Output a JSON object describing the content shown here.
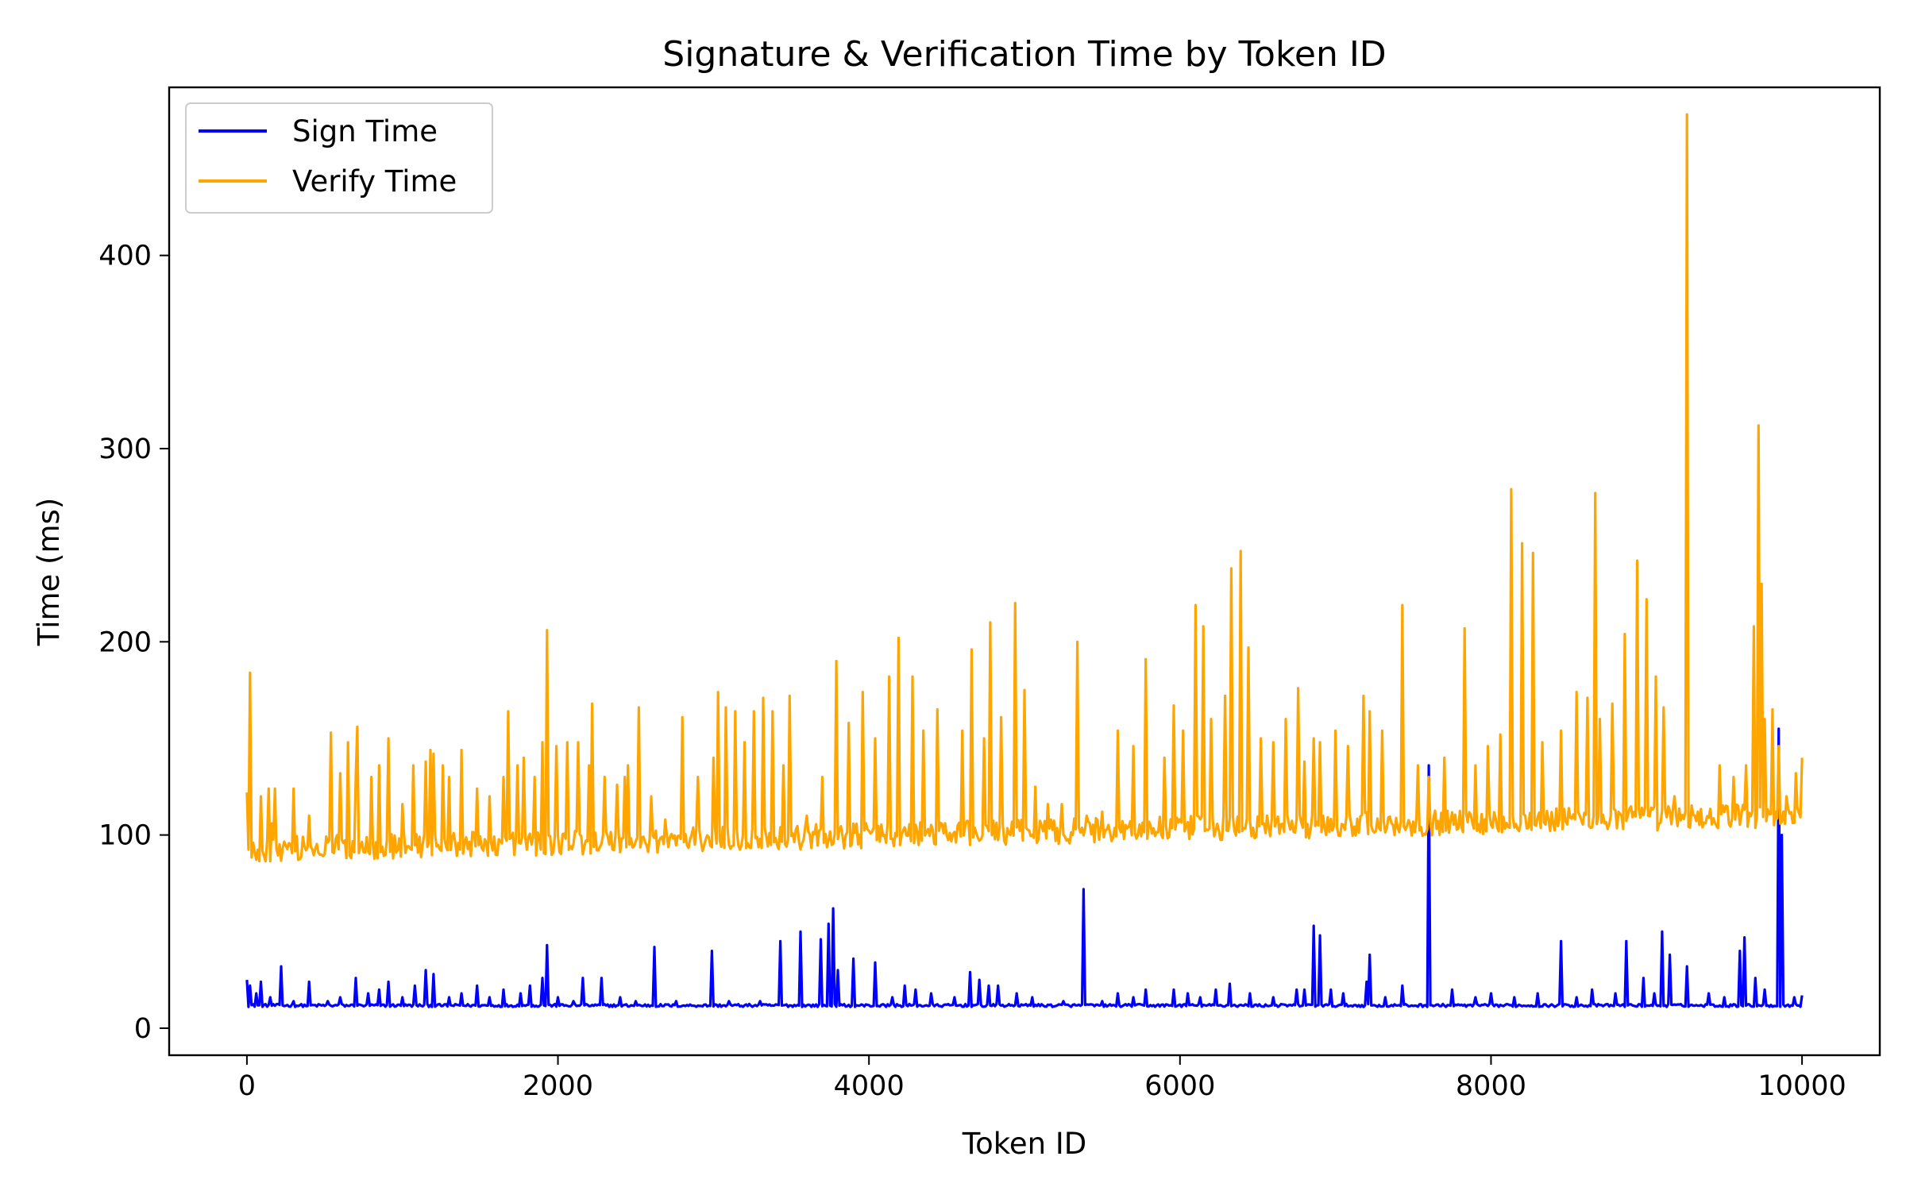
{
  "chart_data": {
    "type": "line",
    "title": "Signature & Verification Time by Token ID",
    "xlabel": "Token ID",
    "ylabel": "Time (ms)",
    "xlim": [
      -500,
      10500
    ],
    "ylim": [
      -14,
      487
    ],
    "xticks": [
      0,
      2000,
      4000,
      6000,
      8000,
      10000
    ],
    "xtick_labels": [
      "0",
      "2000",
      "4000",
      "6000",
      "8000",
      "10000"
    ],
    "yticks": [
      0,
      100,
      200,
      300,
      400
    ],
    "ytick_labels": [
      "0",
      "100",
      "200",
      "300",
      "400"
    ],
    "grid": false,
    "legend": {
      "placement": "top-left"
    },
    "series": [
      {
        "name": "Sign Time",
        "color": "#0000ff",
        "baseline": 11,
        "noise": 1.5,
        "spikes": [
          [
            0,
            25
          ],
          [
            20,
            22
          ],
          [
            60,
            18
          ],
          [
            90,
            24
          ],
          [
            150,
            16
          ],
          [
            220,
            32
          ],
          [
            300,
            14
          ],
          [
            400,
            24
          ],
          [
            520,
            14
          ],
          [
            600,
            16
          ],
          [
            700,
            26
          ],
          [
            780,
            18
          ],
          [
            850,
            20
          ],
          [
            910,
            24
          ],
          [
            1000,
            16
          ],
          [
            1080,
            22
          ],
          [
            1150,
            30
          ],
          [
            1200,
            28
          ],
          [
            1300,
            16
          ],
          [
            1380,
            18
          ],
          [
            1480,
            22
          ],
          [
            1560,
            16
          ],
          [
            1650,
            20
          ],
          [
            1760,
            18
          ],
          [
            1820,
            22
          ],
          [
            1900,
            26
          ],
          [
            1925,
            43
          ],
          [
            2000,
            16
          ],
          [
            2100,
            14
          ],
          [
            2160,
            26
          ],
          [
            2280,
            26
          ],
          [
            2400,
            16
          ],
          [
            2500,
            14
          ],
          [
            2620,
            42
          ],
          [
            2760,
            14
          ],
          [
            2990,
            40
          ],
          [
            3100,
            14
          ],
          [
            3300,
            14
          ],
          [
            3430,
            45
          ],
          [
            3560,
            50
          ],
          [
            3690,
            46
          ],
          [
            3740,
            54
          ],
          [
            3770,
            62
          ],
          [
            3800,
            30
          ],
          [
            3900,
            36
          ],
          [
            4040,
            34
          ],
          [
            4150,
            16
          ],
          [
            4230,
            22
          ],
          [
            4300,
            20
          ],
          [
            4400,
            18
          ],
          [
            4550,
            16
          ],
          [
            4650,
            29
          ],
          [
            4710,
            25
          ],
          [
            4770,
            22
          ],
          [
            4830,
            22
          ],
          [
            4950,
            18
          ],
          [
            5050,
            16
          ],
          [
            5250,
            14
          ],
          [
            5380,
            72
          ],
          [
            5500,
            14
          ],
          [
            5600,
            18
          ],
          [
            5700,
            16
          ],
          [
            5780,
            20
          ],
          [
            5960,
            20
          ],
          [
            6050,
            18
          ],
          [
            6130,
            16
          ],
          [
            6230,
            20
          ],
          [
            6320,
            23
          ],
          [
            6450,
            18
          ],
          [
            6600,
            16
          ],
          [
            6750,
            20
          ],
          [
            6800,
            20
          ],
          [
            6860,
            53
          ],
          [
            6900,
            48
          ],
          [
            6970,
            20
          ],
          [
            7050,
            18
          ],
          [
            7200,
            24
          ],
          [
            7220,
            38
          ],
          [
            7320,
            16
          ],
          [
            7430,
            22
          ],
          [
            7600,
            136
          ],
          [
            7750,
            20
          ],
          [
            7900,
            16
          ],
          [
            8000,
            18
          ],
          [
            8150,
            16
          ],
          [
            8300,
            18
          ],
          [
            8450,
            45
          ],
          [
            8550,
            16
          ],
          [
            8650,
            20
          ],
          [
            8800,
            18
          ],
          [
            8870,
            45
          ],
          [
            8980,
            26
          ],
          [
            9050,
            18
          ],
          [
            9100,
            50
          ],
          [
            9150,
            38
          ],
          [
            9260,
            32
          ],
          [
            9400,
            18
          ],
          [
            9500,
            16
          ],
          [
            9600,
            40
          ],
          [
            9630,
            47
          ],
          [
            9700,
            26
          ],
          [
            9760,
            20
          ],
          [
            9850,
            155
          ],
          [
            9870,
            100
          ],
          [
            9950,
            16
          ],
          [
            10000,
            17
          ]
        ]
      },
      {
        "name": "Verify Time",
        "color": "#ffa500",
        "baseline_start": 86,
        "baseline_end": 104,
        "noise": 10,
        "spikes": [
          [
            0,
            122
          ],
          [
            20,
            184
          ],
          [
            40,
            96
          ],
          [
            90,
            120
          ],
          [
            140,
            124
          ],
          [
            160,
            106
          ],
          [
            180,
            124
          ],
          [
            300,
            124
          ],
          [
            400,
            110
          ],
          [
            540,
            153
          ],
          [
            600,
            132
          ],
          [
            650,
            148
          ],
          [
            700,
            130
          ],
          [
            710,
            156
          ],
          [
            800,
            130
          ],
          [
            850,
            136
          ],
          [
            910,
            150
          ],
          [
            1000,
            116
          ],
          [
            1070,
            136
          ],
          [
            1150,
            138
          ],
          [
            1180,
            144
          ],
          [
            1200,
            142
          ],
          [
            1260,
            136
          ],
          [
            1300,
            130
          ],
          [
            1380,
            144
          ],
          [
            1480,
            124
          ],
          [
            1560,
            120
          ],
          [
            1650,
            130
          ],
          [
            1680,
            164
          ],
          [
            1740,
            136
          ],
          [
            1780,
            140
          ],
          [
            1850,
            130
          ],
          [
            1900,
            148
          ],
          [
            1925,
            206
          ],
          [
            1990,
            146
          ],
          [
            2060,
            148
          ],
          [
            2130,
            148
          ],
          [
            2200,
            136
          ],
          [
            2220,
            168
          ],
          [
            2300,
            130
          ],
          [
            2380,
            126
          ],
          [
            2430,
            130
          ],
          [
            2450,
            136
          ],
          [
            2520,
            166
          ],
          [
            2600,
            120
          ],
          [
            2690,
            108
          ],
          [
            2800,
            161
          ],
          [
            2900,
            130
          ],
          [
            3000,
            140
          ],
          [
            3030,
            174
          ],
          [
            3080,
            166
          ],
          [
            3140,
            164
          ],
          [
            3200,
            148
          ],
          [
            3260,
            164
          ],
          [
            3320,
            171
          ],
          [
            3380,
            164
          ],
          [
            3450,
            136
          ],
          [
            3490,
            172
          ],
          [
            3600,
            110
          ],
          [
            3700,
            130
          ],
          [
            3790,
            190
          ],
          [
            3870,
            158
          ],
          [
            3960,
            174
          ],
          [
            4040,
            150
          ],
          [
            4130,
            182
          ],
          [
            4190,
            202
          ],
          [
            4280,
            182
          ],
          [
            4350,
            154
          ],
          [
            4440,
            165
          ],
          [
            4600,
            154
          ],
          [
            4660,
            196
          ],
          [
            4740,
            150
          ],
          [
            4780,
            210
          ],
          [
            4850,
            161
          ],
          [
            4940,
            220
          ],
          [
            5000,
            175
          ],
          [
            5070,
            125
          ],
          [
            5150,
            116
          ],
          [
            5240,
            116
          ],
          [
            5340,
            200
          ],
          [
            5400,
            110
          ],
          [
            5500,
            112
          ],
          [
            5600,
            154
          ],
          [
            5700,
            146
          ],
          [
            5780,
            191
          ],
          [
            5900,
            140
          ],
          [
            5960,
            167
          ],
          [
            6020,
            154
          ],
          [
            6100,
            219
          ],
          [
            6150,
            208
          ],
          [
            6200,
            160
          ],
          [
            6290,
            172
          ],
          [
            6330,
            238
          ],
          [
            6390,
            247
          ],
          [
            6440,
            197
          ],
          [
            6520,
            150
          ],
          [
            6600,
            148
          ],
          [
            6680,
            160
          ],
          [
            6760,
            176
          ],
          [
            6800,
            138
          ],
          [
            6860,
            150
          ],
          [
            6900,
            148
          ],
          [
            7000,
            154
          ],
          [
            7080,
            146
          ],
          [
            7180,
            172
          ],
          [
            7220,
            164
          ],
          [
            7300,
            154
          ],
          [
            7430,
            219
          ],
          [
            7530,
            136
          ],
          [
            7600,
            130
          ],
          [
            7700,
            140
          ],
          [
            7830,
            207
          ],
          [
            7900,
            136
          ],
          [
            7980,
            146
          ],
          [
            8060,
            152
          ],
          [
            8130,
            279
          ],
          [
            8200,
            251
          ],
          [
            8270,
            246
          ],
          [
            8330,
            148
          ],
          [
            8450,
            154
          ],
          [
            8550,
            174
          ],
          [
            8620,
            171
          ],
          [
            8670,
            277
          ],
          [
            8700,
            160
          ],
          [
            8780,
            168
          ],
          [
            8860,
            204
          ],
          [
            8940,
            242
          ],
          [
            9000,
            222
          ],
          [
            9060,
            182
          ],
          [
            9110,
            166
          ],
          [
            9180,
            120
          ],
          [
            9260,
            473
          ],
          [
            9310,
            110
          ],
          [
            9470,
            136
          ],
          [
            9560,
            130
          ],
          [
            9640,
            136
          ],
          [
            9690,
            208
          ],
          [
            9720,
            312
          ],
          [
            9740,
            230
          ],
          [
            9760,
            160
          ],
          [
            9810,
            165
          ],
          [
            9850,
            146
          ],
          [
            9900,
            120
          ],
          [
            9960,
            132
          ],
          [
            10000,
            140
          ]
        ]
      }
    ]
  }
}
